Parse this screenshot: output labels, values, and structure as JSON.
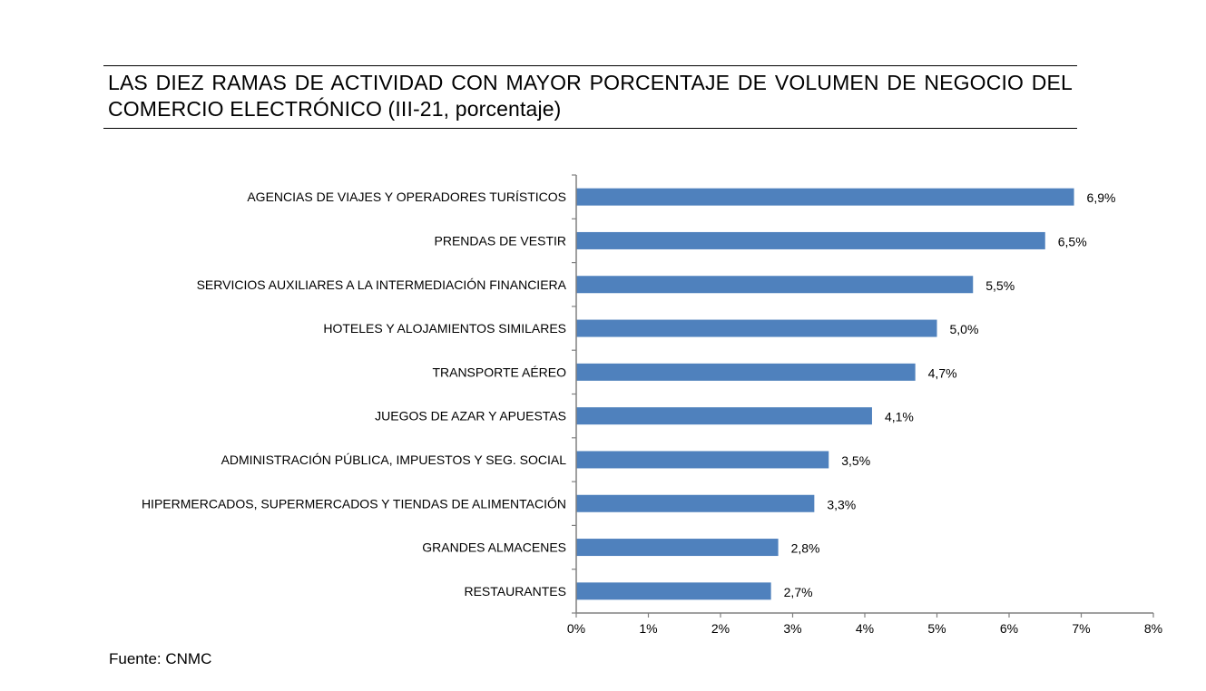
{
  "title": "LAS DIEZ RAMAS DE ACTIVIDAD CON MAYOR PORCENTAJE DE VOLUMEN DE NEGOCIO DEL COMERCIO ELECTRÓNICO (III-21, porcentaje)",
  "source": "Fuente: CNMC",
  "colors": {
    "bar": "#4f81bd",
    "axis": "#808080",
    "text": "#000000"
  },
  "chart_data": {
    "type": "bar",
    "orientation": "horizontal",
    "categories": [
      "AGENCIAS DE VIAJES Y OPERADORES TURÍSTICOS",
      "PRENDAS DE VESTIR",
      "SERVICIOS AUXILIARES A LA INTERMEDIACIÓN FINANCIERA",
      "HOTELES  Y ALOJAMIENTOS SIMILARES",
      "TRANSPORTE AÉREO",
      "JUEGOS DE AZAR Y APUESTAS",
      "ADMINISTRACIÓN PÚBLICA, IMPUESTOS Y SEG. SOCIAL",
      "HIPERMERCADOS, SUPERMERCADOS Y TIENDAS DE ALIMENTACIÓN",
      "GRANDES ALMACENES",
      "RESTAURANTES"
    ],
    "values": [
      6.9,
      6.5,
      5.5,
      5.0,
      4.7,
      4.1,
      3.5,
      3.3,
      2.8,
      2.7
    ],
    "data_labels": [
      "6,9%",
      "6,5%",
      "5,5%",
      "5,0%",
      "4,7%",
      "4,1%",
      "3,5%",
      "3,3%",
      "2,8%",
      "2,7%"
    ],
    "x_ticks": [
      0,
      1,
      2,
      3,
      4,
      5,
      6,
      7,
      8
    ],
    "x_tick_labels": [
      "0%",
      "1%",
      "2%",
      "3%",
      "4%",
      "5%",
      "6%",
      "7%",
      "8%"
    ],
    "xlim": [
      0,
      8
    ],
    "grid": false,
    "legend": "none"
  }
}
